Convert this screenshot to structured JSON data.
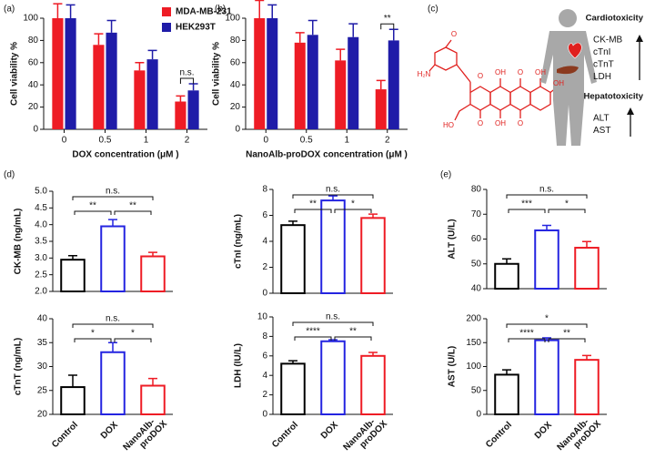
{
  "panel_labels": [
    "(a)",
    "(b)",
    "(c)",
    "(d)",
    "(e)"
  ],
  "diagram": {
    "atoms": [
      "O",
      "OH",
      "O",
      "OH",
      "H₂N",
      "O",
      "HO",
      "O",
      "OH",
      "O",
      "OH"
    ],
    "groups": [
      {
        "title": "Cardiotoxicity",
        "items": [
          "CK-MB",
          "cTnI",
          "cTnT",
          "LDH"
        ]
      },
      {
        "title": "Hepatotoxicity",
        "items": [
          "ALT",
          "AST"
        ]
      }
    ]
  },
  "chart_data": [
    {
      "type": "grouped_bar",
      "ylabel": "Cell viability %",
      "xlabel": "DOX concentration (μM )",
      "categories": [
        "0",
        "0.5",
        "1",
        "2"
      ],
      "series": [
        {
          "name": "MDA-MB-231",
          "color": "#ee1c25",
          "values": [
            100,
            76,
            53,
            25
          ],
          "errors": [
            13,
            10,
            7,
            5
          ]
        },
        {
          "name": "HEK293T",
          "color": "#1f1ca8",
          "values": [
            100,
            87,
            63,
            35
          ],
          "errors": [
            12,
            11,
            8,
            6
          ]
        }
      ],
      "ylim": [
        0,
        100
      ],
      "yticks": [
        0,
        20,
        40,
        60,
        80,
        100
      ],
      "comparisons": [
        {
          "category": 3,
          "label": "n.s."
        }
      ]
    },
    {
      "type": "grouped_bar",
      "ylabel": "Cell viability %",
      "xlabel": "NanoAlb-proDOX concentration (μM )",
      "categories": [
        "0",
        "0.5",
        "1",
        "2"
      ],
      "series": [
        {
          "name": "MDA-MB-231",
          "color": "#ee1c25",
          "values": [
            100,
            78,
            62,
            36
          ],
          "errors": [
            16,
            9,
            10,
            8
          ]
        },
        {
          "name": "HEK293T",
          "color": "#1f1ca8",
          "values": [
            100,
            85,
            83,
            80
          ],
          "errors": [
            12,
            13,
            12,
            10
          ]
        }
      ],
      "ylim": [
        0,
        100
      ],
      "yticks": [
        0,
        20,
        40,
        60,
        80,
        100
      ],
      "comparisons": [
        {
          "category": 3,
          "label": "**"
        }
      ]
    },
    {
      "type": "bar",
      "ylabel": "CK-MB (ng/mL)",
      "values": [
        2.95,
        3.95,
        3.05
      ],
      "errors": [
        0.12,
        0.2,
        0.12
      ],
      "colors": [
        "#000000",
        "#2424e0",
        "#ee1c25"
      ],
      "ylim": [
        2,
        5
      ],
      "yticks": [
        {
          "value": 2,
          "label": "2.0"
        },
        2.5,
        {
          "value": 3,
          "label": "3.0"
        },
        3.5,
        {
          "value": 4,
          "label": "4.0"
        },
        4.5,
        {
          "value": 5,
          "label": "5.0"
        }
      ],
      "comparisons": [
        {
          "pair": [
            0,
            2
          ],
          "label": "n.s."
        },
        {
          "pair": [
            0,
            1
          ],
          "label": "**"
        },
        {
          "pair": [
            1,
            2
          ],
          "label": "**"
        }
      ]
    },
    {
      "type": "bar",
      "ylabel": "cTnI (ng/mL)",
      "values": [
        5.25,
        7.15,
        5.8
      ],
      "errors": [
        0.3,
        0.35,
        0.3
      ],
      "colors": [
        "#000000",
        "#2424e0",
        "#ee1c25"
      ],
      "ylim": [
        0,
        8
      ],
      "yticks": [
        0,
        2,
        4,
        6,
        8
      ],
      "comparisons": [
        {
          "pair": [
            0,
            2
          ],
          "label": "n.s."
        },
        {
          "pair": [
            0,
            1
          ],
          "label": "**"
        },
        {
          "pair": [
            1,
            2
          ],
          "label": "*"
        }
      ]
    },
    {
      "type": "bar",
      "ylabel": "ALT (U/L)",
      "values": [
        50,
        63.5,
        56.5
      ],
      "errors": [
        2,
        2,
        2.5
      ],
      "colors": [
        "#000000",
        "#2424e0",
        "#ee1c25"
      ],
      "ylim": [
        40,
        80
      ],
      "yticks": [
        40,
        50,
        60,
        70,
        80
      ],
      "comparisons": [
        {
          "pair": [
            0,
            2
          ],
          "label": "n.s."
        },
        {
          "pair": [
            0,
            1
          ],
          "label": "***"
        },
        {
          "pair": [
            1,
            2
          ],
          "label": "*"
        }
      ]
    },
    {
      "type": "bar",
      "ylabel": "cTnT (ng/mL)",
      "categories": [
        "Control",
        "DOX",
        "NanoAlb-proDOX"
      ],
      "values": [
        25.7,
        33,
        26
      ],
      "errors": [
        2.5,
        2,
        1.5
      ],
      "colors": [
        "#000000",
        "#2424e0",
        "#ee1c25"
      ],
      "ylim": [
        20,
        40
      ],
      "yticks": [
        20,
        25,
        30,
        35,
        40
      ],
      "comparisons": [
        {
          "pair": [
            0,
            2
          ],
          "label": "n.s."
        },
        {
          "pair": [
            0,
            1
          ],
          "label": "*"
        },
        {
          "pair": [
            1,
            2
          ],
          "label": "*"
        }
      ]
    },
    {
      "type": "bar",
      "ylabel": "LDH (IU/L)",
      "categories": [
        "Control",
        "DOX",
        "NanoAlb-proDOX"
      ],
      "values": [
        5.2,
        7.5,
        6.0
      ],
      "errors": [
        0.3,
        0.15,
        0.35
      ],
      "colors": [
        "#000000",
        "#2424e0",
        "#ee1c25"
      ],
      "ylim": [
        0,
        10
      ],
      "yticks": [
        0,
        2,
        4,
        6,
        8,
        10
      ],
      "comparisons": [
        {
          "pair": [
            0,
            2
          ],
          "label": "n.s."
        },
        {
          "pair": [
            0,
            1
          ],
          "label": "****"
        },
        {
          "pair": [
            1,
            2
          ],
          "label": "**"
        }
      ]
    },
    {
      "type": "bar",
      "ylabel": "AST (U/L)",
      "categories": [
        "Control",
        "DOX",
        "NanoAlb-proDOX"
      ],
      "values": [
        83,
        155,
        114
      ],
      "errors": [
        10,
        5,
        9
      ],
      "colors": [
        "#000000",
        "#2424e0",
        "#ee1c25"
      ],
      "ylim": [
        0,
        200
      ],
      "yticks": [
        0,
        50,
        100,
        150,
        200
      ],
      "comparisons": [
        {
          "pair": [
            0,
            2
          ],
          "label": "*"
        },
        {
          "pair": [
            0,
            1
          ],
          "label": "****"
        },
        {
          "pair": [
            1,
            2
          ],
          "label": "**"
        }
      ]
    }
  ]
}
